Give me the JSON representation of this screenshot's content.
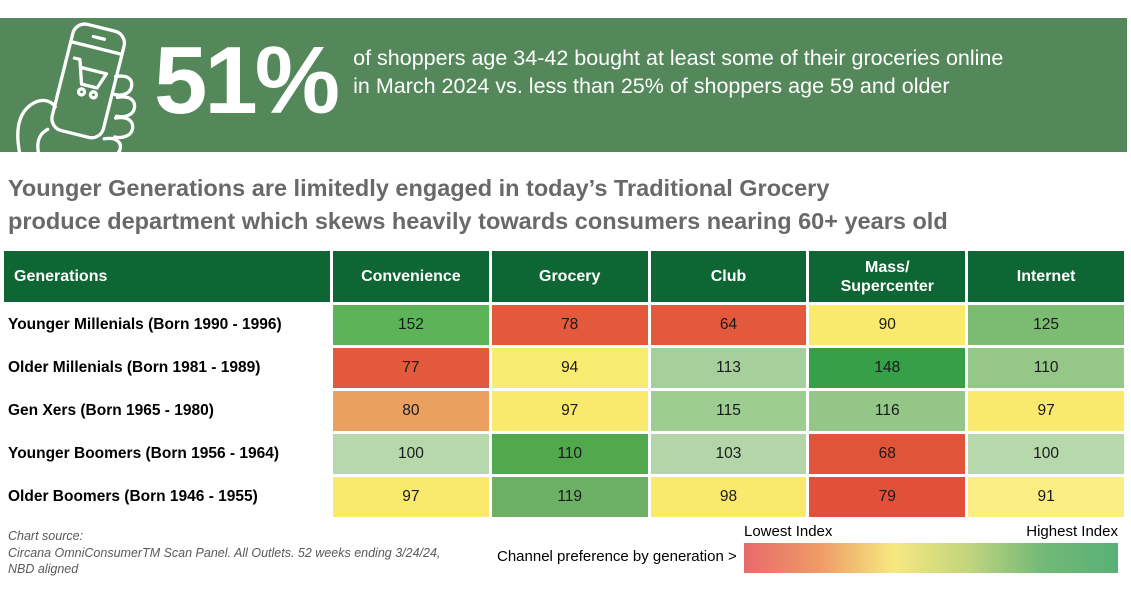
{
  "banner": {
    "bg_color": "#54875a",
    "stat": "51%",
    "line1": "of shoppers age 34-42 bought at least some of their groceries online",
    "line2": "in March 2024 vs. less than 25% of shoppers age 59 and older",
    "icon": "phone-shopping-cart-icon"
  },
  "headline": {
    "line1": "Younger Generations are limitedly engaged in today’s Traditional Grocery",
    "line2": "produce department which skews heavily towards consumers nearing 60+ years old"
  },
  "chart_data": {
    "type": "heatmap",
    "header_bg": "#0e6634",
    "columns": [
      {
        "label": "Generations"
      },
      {
        "label": "Convenience"
      },
      {
        "label": "Grocery"
      },
      {
        "label": "Club"
      },
      {
        "label": "Mass/",
        "label2": "Supercenter"
      },
      {
        "label": "Internet"
      }
    ],
    "rows": [
      {
        "label": "Younger Millenials (Born 1990 - 1996)",
        "values": [
          152,
          78,
          64,
          90,
          125
        ],
        "colors": [
          "#5cb358",
          "#e2593c",
          "#e2593c",
          "#f9ea6d",
          "#7cbb72"
        ]
      },
      {
        "label": "Older Millenials (Born 1981 - 1989)",
        "values": [
          77,
          94,
          113,
          148,
          110
        ],
        "colors": [
          "#e2593c",
          "#f9ed71",
          "#a5d09b",
          "#35a047",
          "#95c789"
        ]
      },
      {
        "label": "Gen Xers (Born 1965 - 1980)",
        "values": [
          80,
          97,
          115,
          116,
          97
        ],
        "colors": [
          "#eca05f",
          "#f9ea6d",
          "#9ecd92",
          "#93c687",
          "#f9ea6d"
        ]
      },
      {
        "label": "Younger Boomers (Born 1956 - 1964)",
        "values": [
          100,
          110,
          103,
          68,
          100
        ],
        "colors": [
          "#b7d8ab",
          "#52a94d",
          "#b3d5a7",
          "#e0543a",
          "#b7d8ab"
        ]
      },
      {
        "label": "Older Boomers (Born 1946 - 1955)",
        "values": [
          97,
          119,
          98,
          79,
          91
        ],
        "colors": [
          "#f9ea6d",
          "#6db065",
          "#f9ea6d",
          "#e0503a",
          "#faee84"
        ]
      }
    ],
    "legend": {
      "low_label": "Lowest Index",
      "high_label": "Highest Index",
      "gradient": [
        "#e86a6a",
        "#ef9a68",
        "#f6e880",
        "#c2d57e",
        "#72b977",
        "#58b175"
      ]
    }
  },
  "footer": {
    "source_line1": "Chart source:",
    "source_line2": "Circana OmniConsumerTM Scan Panel. All Outlets. 52 weeks ending 3/24/24,",
    "source_line3": "NBD aligned",
    "legend_caption": "Channel preference by generation >"
  }
}
